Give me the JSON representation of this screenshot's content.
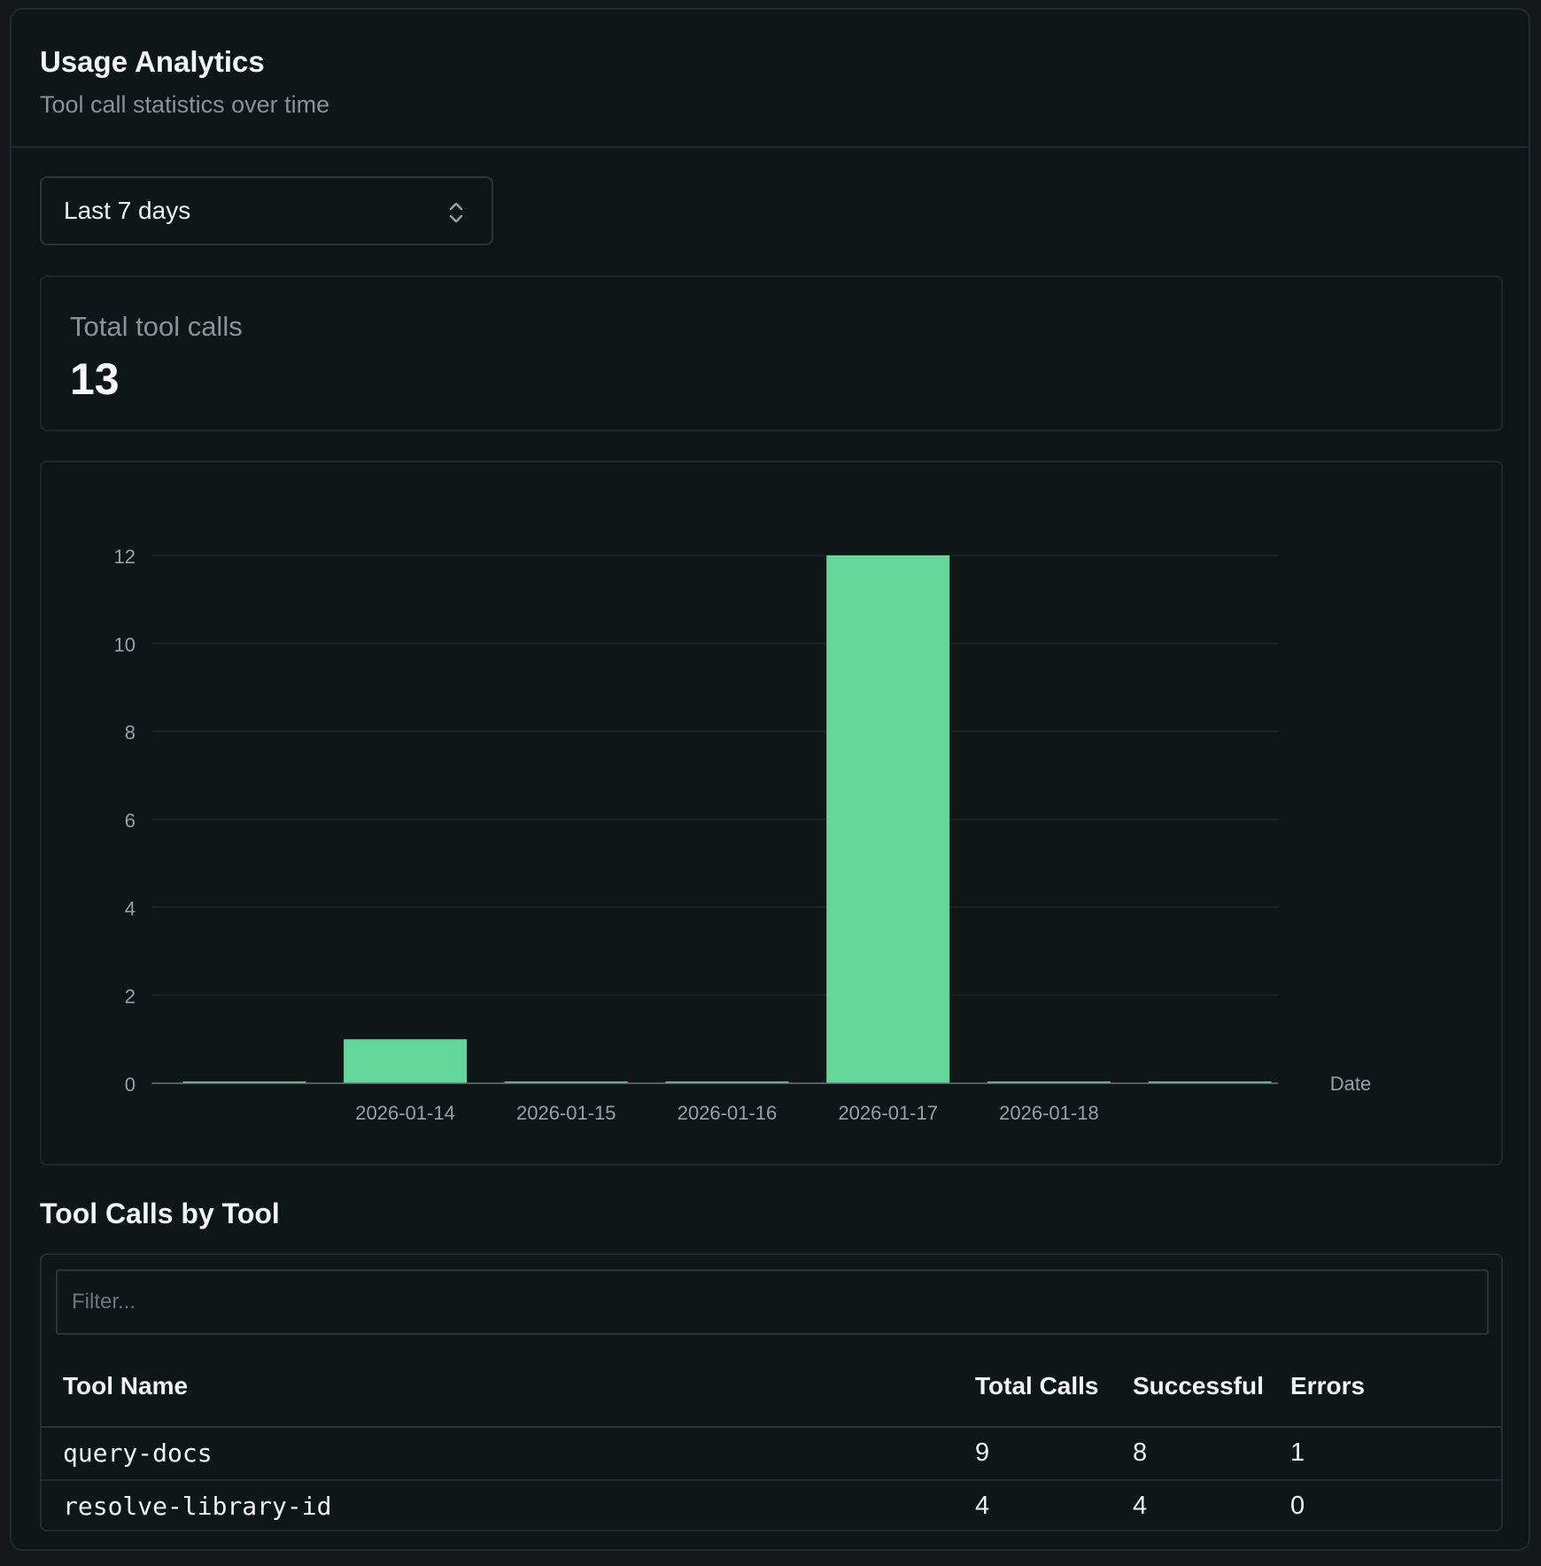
{
  "header": {
    "title": "Usage Analytics",
    "subtitle": "Tool call statistics over time"
  },
  "range_select": {
    "value": "Last 7 days",
    "icon": "chevron-up-down-icon"
  },
  "stat": {
    "label": "Total tool calls",
    "value": "13"
  },
  "chart_data": {
    "type": "bar",
    "categories": [
      "",
      "2026-01-14",
      "2026-01-15",
      "2026-01-16",
      "2026-01-17",
      "2026-01-18",
      ""
    ],
    "values": [
      0,
      1,
      0,
      0,
      12,
      0,
      0
    ],
    "title": "",
    "xlabel": "Date",
    "ylabel": "",
    "ylim": [
      0,
      12
    ],
    "yticks": [
      0,
      2,
      4,
      6,
      8,
      10,
      12
    ],
    "grid": true,
    "bar_color": "#63d69a"
  },
  "table_section": {
    "title": "Tool Calls by Tool",
    "filter_placeholder": "Filter...",
    "columns": [
      "Tool Name",
      "Total Calls",
      "Successful",
      "Errors"
    ],
    "rows": [
      {
        "tool": "query-docs",
        "total": "9",
        "successful": "8",
        "errors": "1"
      },
      {
        "tool": "resolve-library-id",
        "total": "4",
        "successful": "4",
        "errors": "0"
      }
    ]
  }
}
